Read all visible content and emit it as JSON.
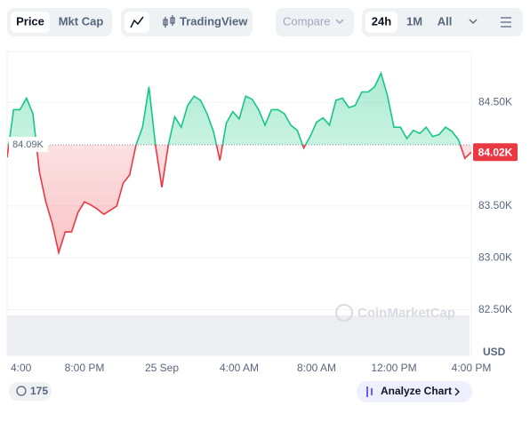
{
  "toolbar": {
    "tabs": [
      "Price",
      "Mkt Cap"
    ],
    "tradingview": "TradingView",
    "compare": "Compare",
    "ranges": [
      "24h",
      "1M",
      "All"
    ]
  },
  "chart_data": {
    "type": "line",
    "values": [
      83970,
      84430,
      84430,
      84540,
      84390,
      83830,
      83540,
      83330,
      83050,
      83250,
      83250,
      83440,
      83540,
      83510,
      83470,
      83420,
      83460,
      83500,
      83720,
      83800,
      84090,
      84260,
      84650,
      84090,
      83680,
      84090,
      84360,
      84260,
      84470,
      84560,
      84520,
      84390,
      84220,
      83940,
      84300,
      84410,
      84340,
      84560,
      84530,
      84430,
      84280,
      84430,
      84430,
      84390,
      84280,
      84230,
      84060,
      84170,
      84310,
      84350,
      84280,
      84520,
      84540,
      84450,
      84470,
      84600,
      84600,
      84650,
      84780,
      84560,
      84260,
      84260,
      84150,
      84230,
      84200,
      84260,
      84170,
      84190,
      84260,
      84220,
      84140,
      83960,
      84020
    ],
    "above_color": "#16c784",
    "below_color": "#ea3943",
    "baseline": {
      "value": 84090,
      "label": "84.09K"
    },
    "current": {
      "value": 84020,
      "label": "84.02K"
    },
    "xlim": [
      0,
      72
    ],
    "xticks": [
      {
        "value": 0,
        "label": "4:00"
      },
      {
        "value": 12,
        "label": "8:00 PM"
      },
      {
        "value": 24,
        "label": "25 Sep"
      },
      {
        "value": 36,
        "label": "4:00 AM"
      },
      {
        "value": 48,
        "label": "8:00 AM"
      },
      {
        "value": 60,
        "label": "12:00 PM"
      },
      {
        "value": 72,
        "label": "4:00 PM"
      }
    ],
    "ylim": [
      82060,
      84990
    ],
    "yticks": [
      {
        "value": 82500,
        "label": "82.50K"
      },
      {
        "value": 83000,
        "label": "83.00K"
      },
      {
        "value": 83500,
        "label": "83.50K"
      },
      {
        "value": 84500,
        "label": "84.50K"
      }
    ],
    "y_axis_label": "USD",
    "grid": true,
    "watermark": "CoinMarketCap"
  },
  "footer": {
    "badge": "175",
    "button": "Analyze Chart"
  }
}
